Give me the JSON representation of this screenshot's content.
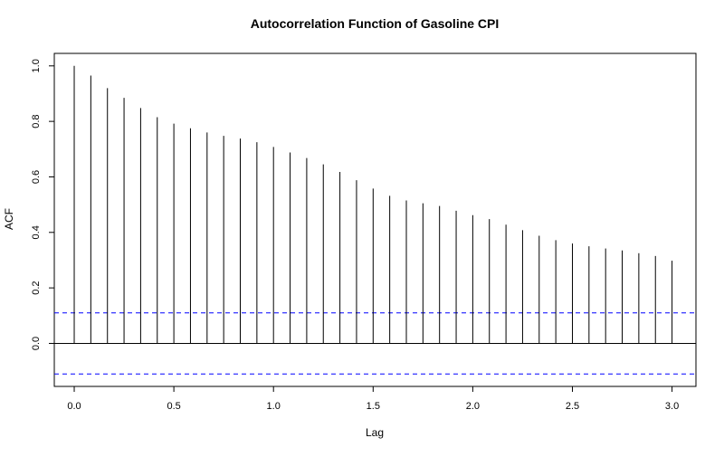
{
  "chart_data": {
    "type": "bar",
    "title": "Autocorrelation Function of Gasoline CPI",
    "xlabel": "Lag",
    "ylabel": "ACF",
    "xlim": [
      -0.1,
      3.12
    ],
    "ylim": [
      -0.155,
      1.045
    ],
    "x_ticks": [
      "0.0",
      "0.5",
      "1.0",
      "1.5",
      "2.0",
      "2.5",
      "3.0"
    ],
    "x_tick_values": [
      0.0,
      0.5,
      1.0,
      1.5,
      2.0,
      2.5,
      3.0
    ],
    "y_ticks": [
      "0.0",
      "0.2",
      "0.4",
      "0.6",
      "0.8",
      "1.0"
    ],
    "y_tick_values": [
      0.0,
      0.2,
      0.4,
      0.6,
      0.8,
      1.0
    ],
    "lag": [
      0.0,
      0.0833,
      0.1667,
      0.25,
      0.3333,
      0.4167,
      0.5,
      0.5833,
      0.6667,
      0.75,
      0.8333,
      0.9167,
      1.0,
      1.0833,
      1.1667,
      1.25,
      1.3333,
      1.4167,
      1.5,
      1.5833,
      1.6667,
      1.75,
      1.8333,
      1.9167,
      2.0,
      2.0833,
      2.1667,
      2.25,
      2.3333,
      2.4167,
      2.5,
      2.5833,
      2.6667,
      2.75,
      2.8333,
      2.9167,
      3.0
    ],
    "acf": [
      1.0,
      0.965,
      0.92,
      0.885,
      0.848,
      0.815,
      0.792,
      0.775,
      0.76,
      0.748,
      0.738,
      0.725,
      0.708,
      0.688,
      0.668,
      0.645,
      0.618,
      0.588,
      0.558,
      0.532,
      0.515,
      0.505,
      0.495,
      0.478,
      0.462,
      0.448,
      0.428,
      0.408,
      0.388,
      0.372,
      0.36,
      0.35,
      0.342,
      0.335,
      0.325,
      0.315,
      0.298
    ],
    "confidence_bound": 0.11,
    "zero_line": true,
    "grid": false,
    "colors": {
      "bars": "#000000",
      "confidence_lines": "#0000ff",
      "axes": "#000000"
    }
  }
}
